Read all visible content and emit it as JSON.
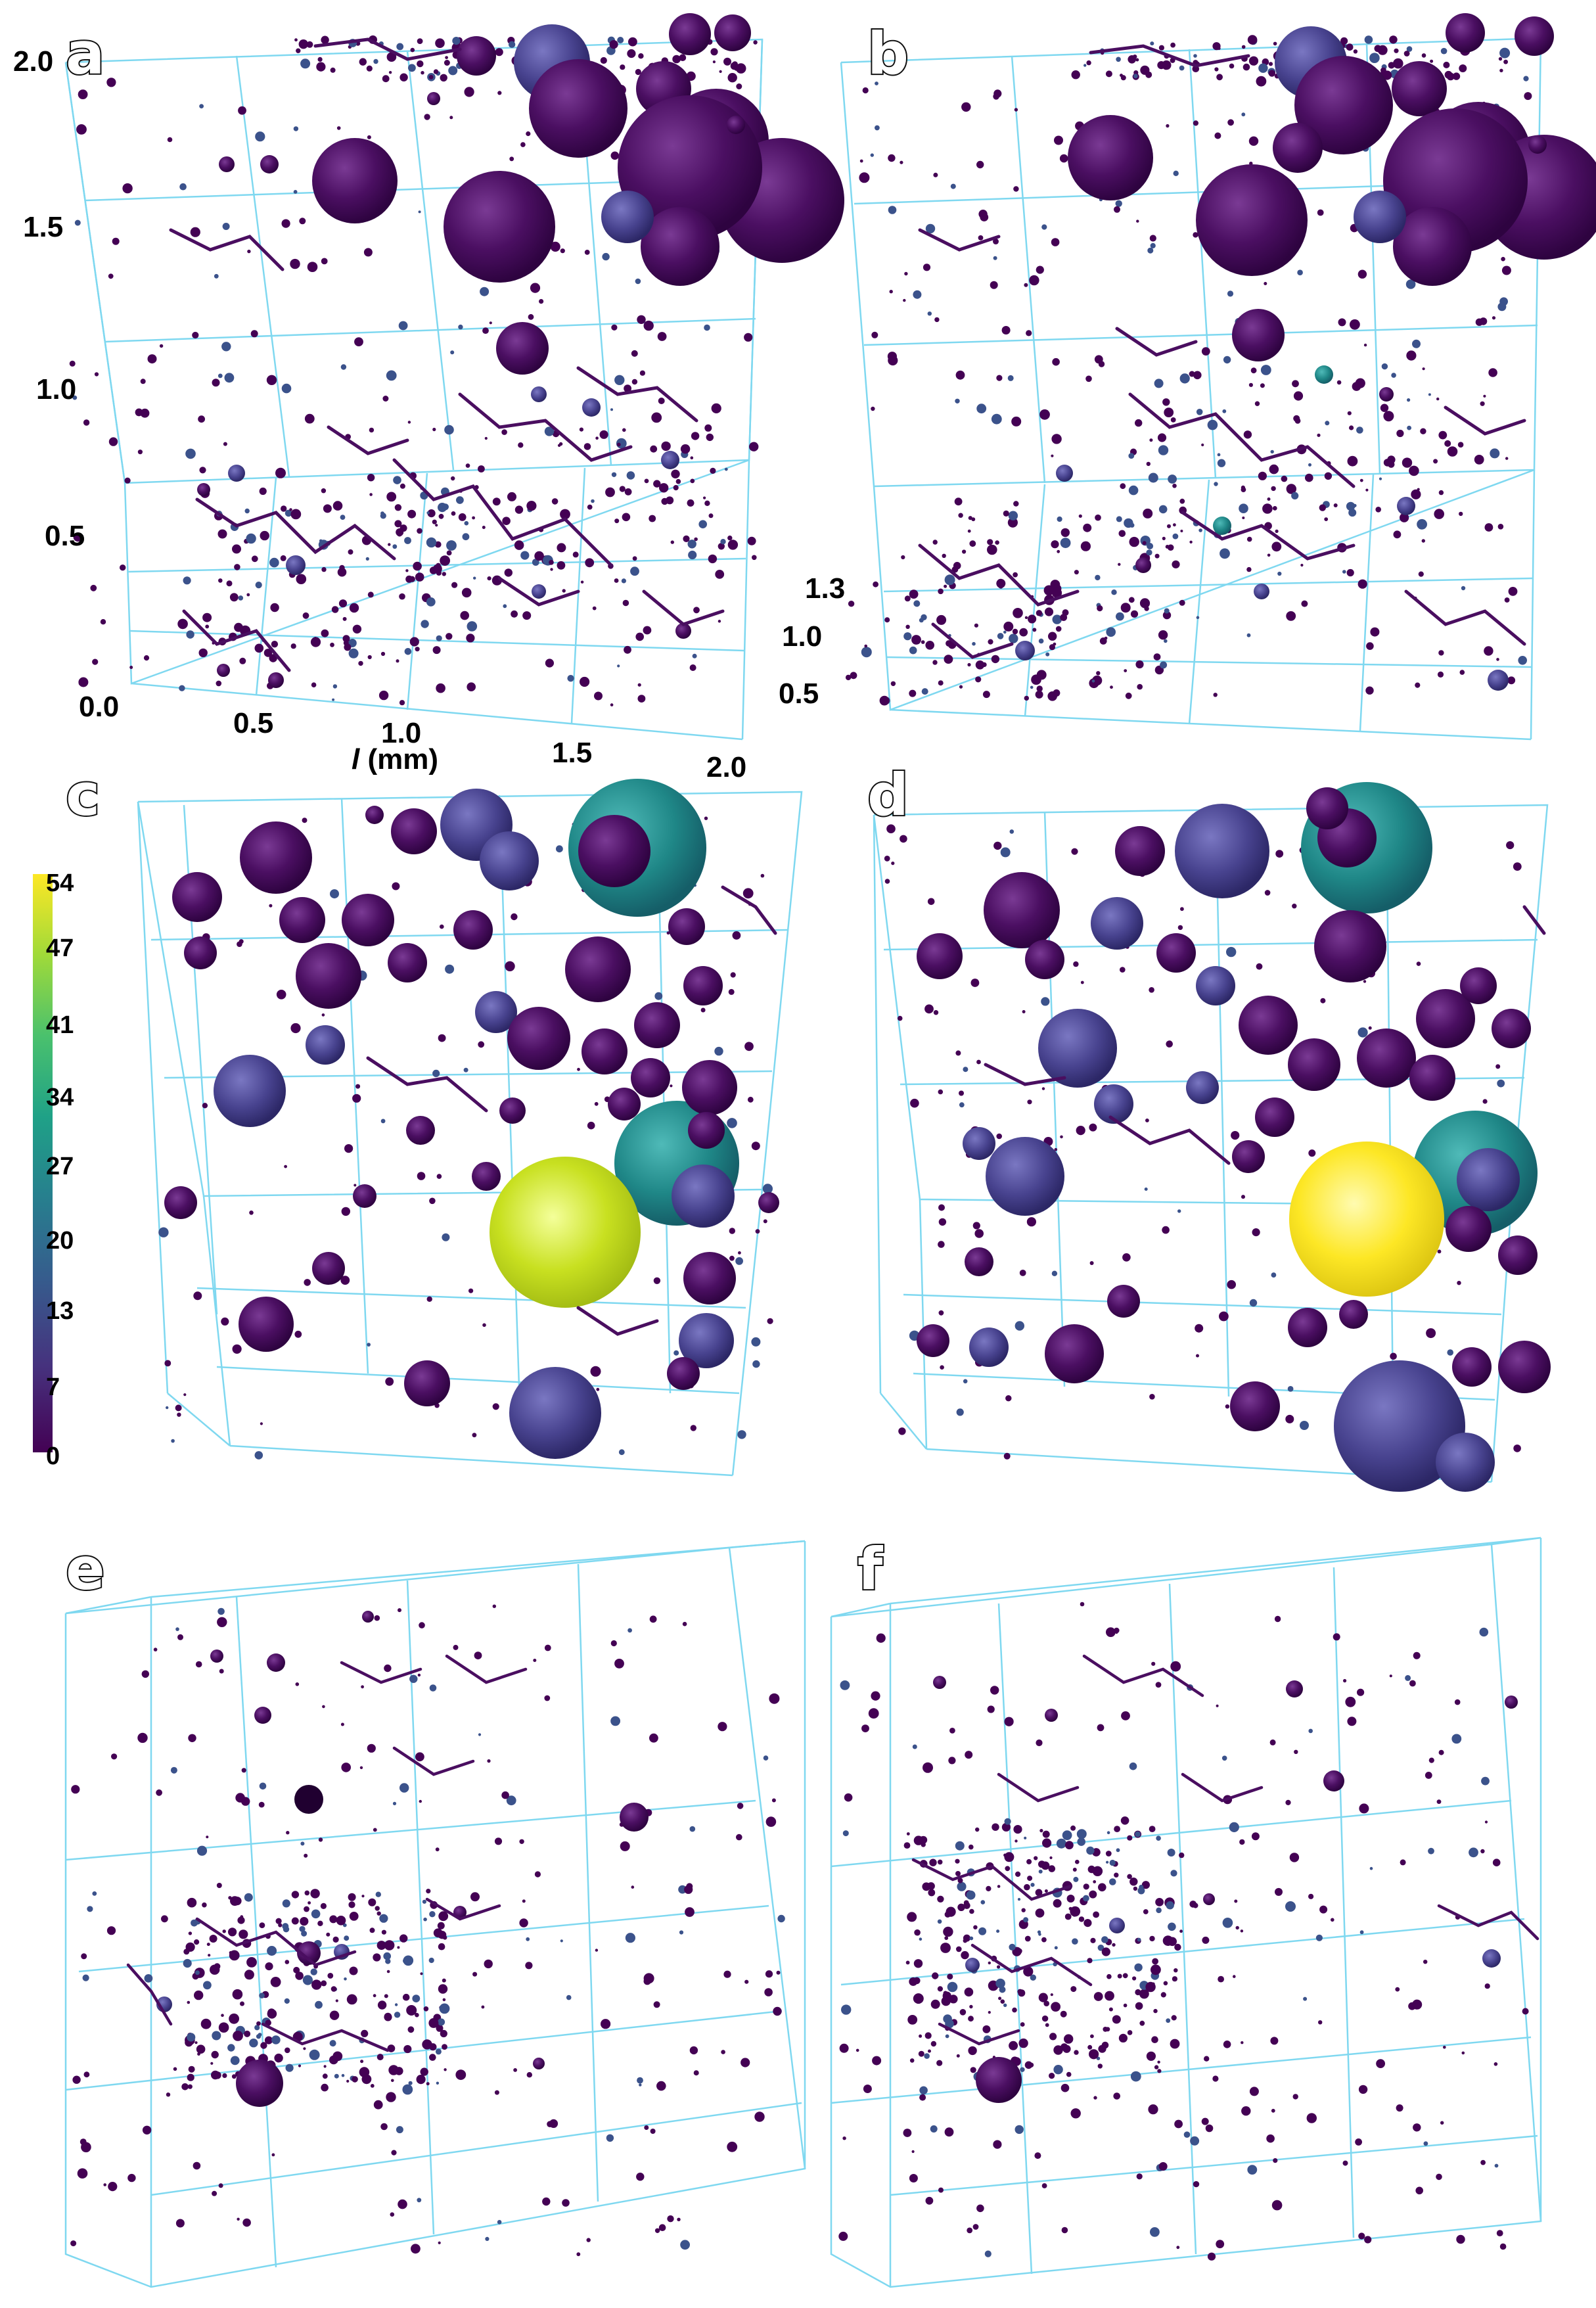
{
  "panels": [
    {
      "letter": "a"
    },
    {
      "letter": "b"
    },
    {
      "letter": "c"
    },
    {
      "letter": "d"
    },
    {
      "letter": "e"
    },
    {
      "letter": "f"
    }
  ],
  "axes": {
    "vertical_ticks": [
      "2.0",
      "1.5",
      "1.0",
      "0.5"
    ],
    "origin": "0.0",
    "horizontal_ticks": [
      "0.5",
      "1.0",
      "1.5",
      "2.0"
    ],
    "depth_ticks": [
      "1.3",
      "1.0",
      "0.5"
    ],
    "xlabel_var": "l",
    "xlabel_unit": " (mm)"
  },
  "colorbar": {
    "ticks": [
      "54",
      "47",
      "41",
      "34",
      "27",
      "20",
      "13",
      "7",
      "0"
    ],
    "colors": [
      "#fde725",
      "#a0da39",
      "#4ac16d",
      "#1fa187",
      "#277f8e",
      "#365c8d",
      "#46327e",
      "#440154"
    ]
  },
  "palette": {
    "grid": "#7fd8f0",
    "pore_dark": "#440154",
    "pore_mid": "#3b528b",
    "pore_teal": "#21908d",
    "pore_yellow": "#fde725",
    "pore_lime": "#c8e020"
  }
}
